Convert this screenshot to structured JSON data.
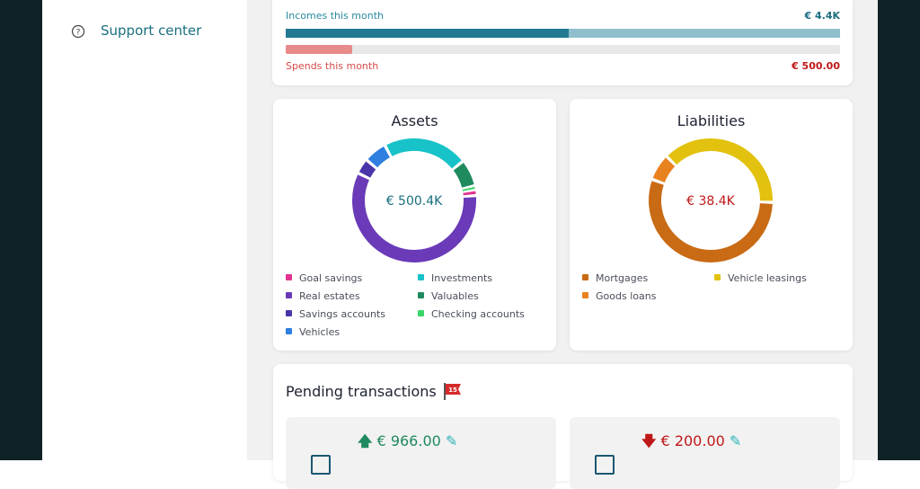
{
  "sidebar": {
    "support": "Support center"
  },
  "month": {
    "income": {
      "label": "Incomes this month",
      "amount": "€ 4.4K",
      "fill_percent": 51
    },
    "spends": {
      "label": "Spends this month",
      "amount": "€ 500.00",
      "fill_percent": 12
    }
  },
  "assets": {
    "title": "Assets",
    "total": "€ 500.4K",
    "items": [
      {
        "name": "Goal savings",
        "color": "#e0338f",
        "share": 1.5
      },
      {
        "name": "Investments",
        "color": "#17c2c8",
        "share": 22
      },
      {
        "name": "Real estates",
        "color": "#6a3ab8",
        "share": 58.5
      },
      {
        "name": "Valuables",
        "color": "#1f8a5e",
        "share": 7
      },
      {
        "name": "Savings accounts",
        "color": "#4a35a8",
        "share": 4
      },
      {
        "name": "Checking accounts",
        "color": "#3ad66a",
        "share": 1
      },
      {
        "name": "Vehicles",
        "color": "#2f7fe0",
        "share": 6
      }
    ]
  },
  "liabilities": {
    "title": "Liabilities",
    "total": "€ 38.4K",
    "items": [
      {
        "name": "Mortgages",
        "color": "#c96a14",
        "share": 55
      },
      {
        "name": "Vehicle leasings",
        "color": "#e2c10f",
        "share": 38
      },
      {
        "name": "Goods loans",
        "color": "#e8821e",
        "share": 7
      }
    ]
  },
  "pending": {
    "title": "Pending transactions",
    "badge": "15",
    "transactions": [
      {
        "amount": "€ 966.00"
      },
      {
        "amount": "€ 200.00"
      }
    ]
  }
}
